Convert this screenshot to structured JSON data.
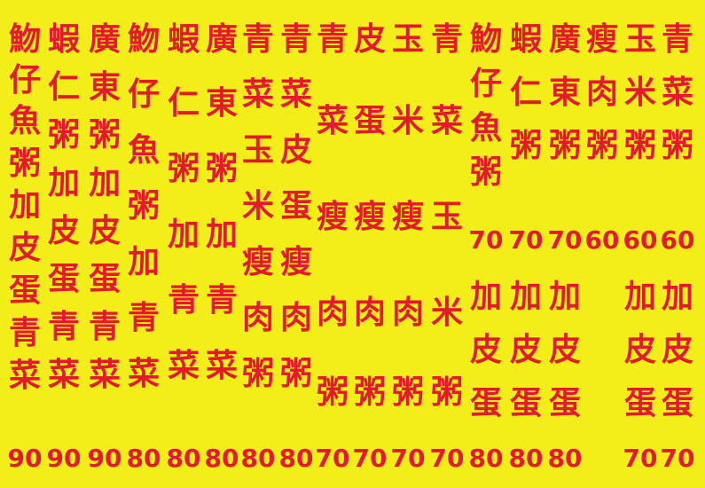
{
  "menu": {
    "columns": [
      {
        "chars": [
          "魩",
          "仔",
          "魚",
          "粥",
          "加",
          "皮",
          "蛋",
          "青",
          "菜"
        ],
        "price": "90"
      },
      {
        "chars": [
          "蝦",
          "仁",
          "粥",
          "加",
          "皮",
          "蛋",
          "青",
          "菜"
        ],
        "price": "90"
      },
      {
        "chars": [
          "廣",
          "東",
          "粥",
          "加",
          "皮",
          "蛋",
          "青",
          "菜"
        ],
        "price": "90"
      },
      {
        "chars": [
          "魩",
          "仔",
          "魚",
          "粥",
          "加",
          "青",
          "菜"
        ],
        "price": "80"
      },
      {
        "chars": [
          "蝦",
          "仁",
          "粥",
          "加",
          "青",
          "菜"
        ],
        "price": "80"
      },
      {
        "chars": [
          "廣",
          "東",
          "粥",
          "加",
          "青",
          "菜"
        ],
        "price": "80"
      },
      {
        "chars": [
          "青",
          "菜",
          "玉",
          "米",
          "瘦",
          "肉",
          "粥"
        ],
        "price": "80"
      },
      {
        "chars": [
          "青",
          "菜",
          "皮",
          "蛋",
          "瘦",
          "肉",
          "粥"
        ],
        "price": "80"
      },
      {
        "chars": [
          "青",
          "菜",
          "瘦",
          "肉",
          "粥"
        ],
        "price": "70"
      },
      {
        "chars": [
          "皮",
          "蛋",
          "瘦",
          "肉",
          "粥"
        ],
        "price": "70"
      },
      {
        "chars": [
          "玉",
          "米",
          "瘦",
          "肉",
          "粥"
        ],
        "price": "70"
      },
      {
        "chars": [
          "青",
          "菜",
          "玉",
          "米",
          "粥"
        ],
        "price": "70"
      },
      {
        "chars": [
          "魩",
          "仔",
          "魚",
          "粥",
          "70",
          "加",
          "皮",
          "蛋"
        ],
        "price": "80"
      },
      {
        "chars": [
          "蝦",
          "仁",
          "粥",
          "70",
          "加",
          "皮",
          "蛋"
        ],
        "price": "80"
      },
      {
        "chars": [
          "廣",
          "東",
          "粥",
          "70",
          "加",
          "皮",
          "蛋"
        ],
        "price": "80"
      },
      {
        "chars": [
          "瘦",
          "肉",
          "粥",
          "60"
        ],
        "price": ""
      },
      {
        "chars": [
          "玉",
          "米",
          "粥",
          "60",
          "加",
          "皮",
          "蛋"
        ],
        "price": "70"
      },
      {
        "chars": [
          "青",
          "菜",
          "粥",
          "60",
          "加",
          "皮",
          "蛋"
        ],
        "price": "70"
      }
    ]
  },
  "colors": {
    "background": "#f3ee1a",
    "text": "#e21a2a"
  }
}
